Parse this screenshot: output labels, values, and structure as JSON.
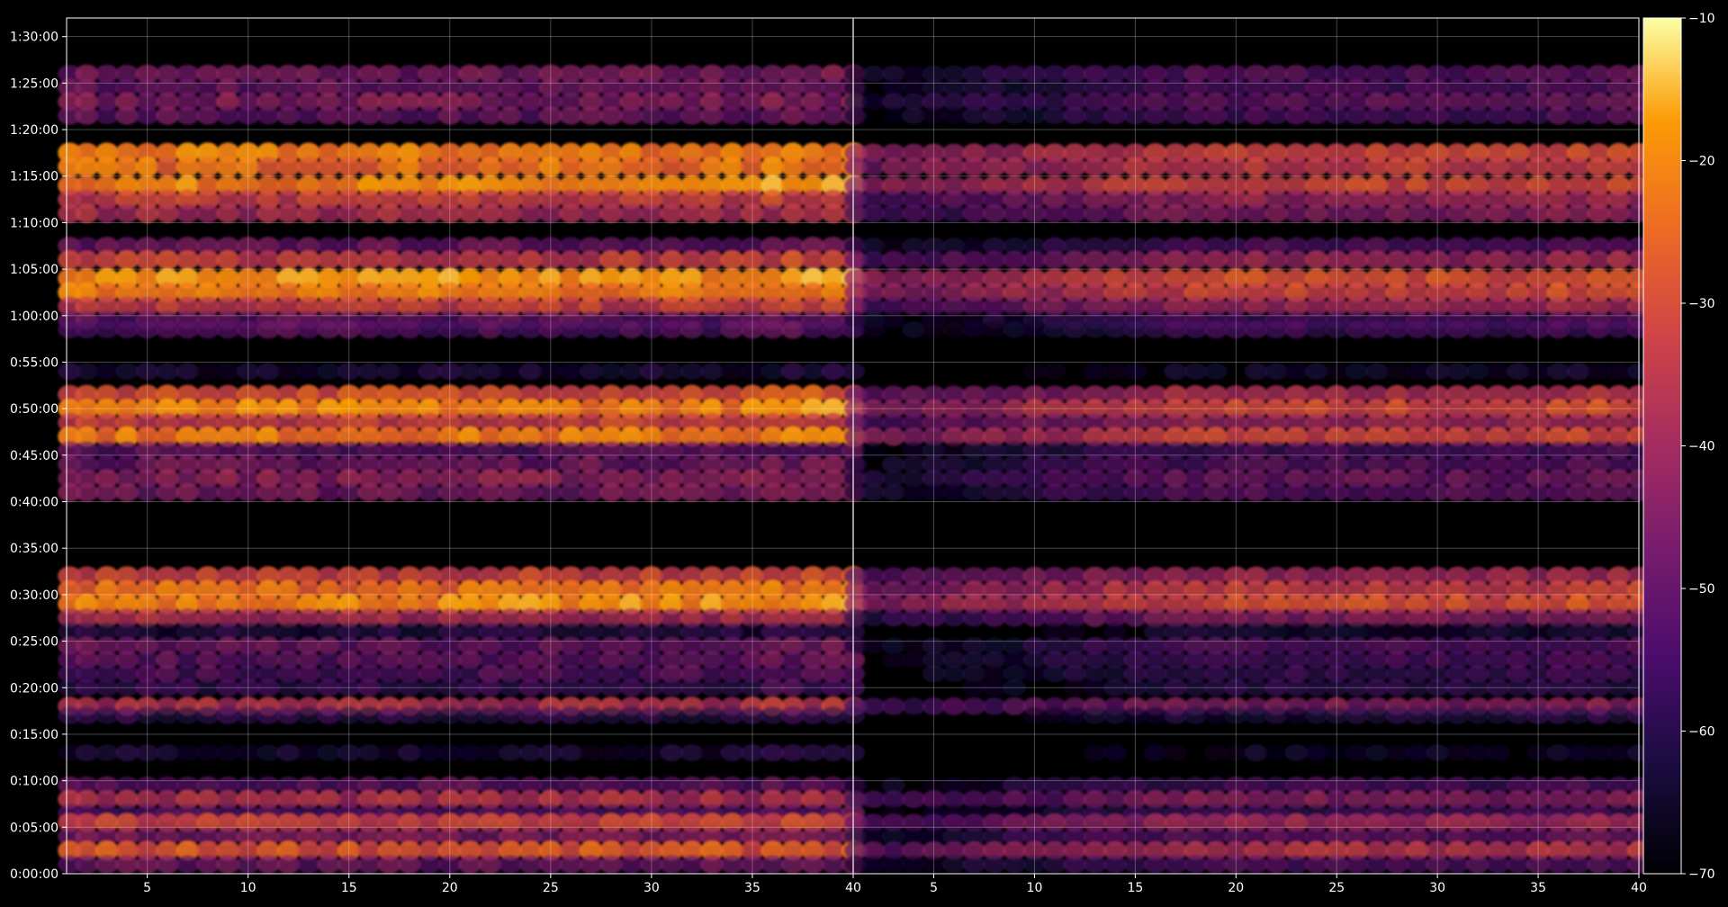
{
  "chart_data": {
    "type": "heatmap",
    "title": "",
    "xlabel": "",
    "ylabel": "",
    "panels": [
      {
        "name": "",
        "x_ticks": [
          5,
          10,
          15,
          20,
          25,
          30,
          35,
          40
        ],
        "xlim": [
          1,
          40
        ],
        "intensity_scale": 1.0
      },
      {
        "name": "",
        "x_ticks": [
          5,
          10,
          15,
          20,
          25,
          30,
          35,
          40
        ],
        "xlim": [
          1,
          40
        ],
        "intensity_scale": 0.8
      }
    ],
    "y_axis": {
      "unit": "time",
      "ylim_seconds": [
        0,
        5520
      ],
      "tick_labels": [
        "0:00:00",
        "0:05:00",
        "0:10:00",
        "0:15:00",
        "0:20:00",
        "0:25:00",
        "0:30:00",
        "0:35:00",
        "0:40:00",
        "0:45:00",
        "0:50:00",
        "0:55:00",
        "1:00:00",
        "1:05:00",
        "1:10:00",
        "1:15:00",
        "1:20:00",
        "1:25:00",
        "1:30:00"
      ]
    },
    "grid": true,
    "colorbar": {
      "colormap": "inferno",
      "range": [
        -70,
        -10
      ],
      "tick_labels": [
        "-10",
        "-20",
        "-30",
        "-40",
        "-50",
        "-60",
        "-70"
      ]
    },
    "rows_seconds_level": [
      [
        "1:26:00",
        -46
      ],
      [
        "1:24:30",
        -48
      ],
      [
        "1:23:00",
        -44
      ],
      [
        "1:21:30",
        -49
      ],
      [
        "1:17:30",
        -22
      ],
      [
        "1:16:00",
        -24
      ],
      [
        "1:14:00",
        -21
      ],
      [
        "1:12:30",
        -33
      ],
      [
        "1:11:00",
        -38
      ],
      [
        "1:07:30",
        -48
      ],
      [
        "1:06:00",
        -33
      ],
      [
        "1:04:00",
        -19
      ],
      [
        "1:02:30",
        -22
      ],
      [
        "1:01:00",
        -33
      ],
      [
        "0:59:30",
        -50
      ],
      [
        "0:58:30",
        -52
      ],
      [
        "0:54:00",
        -62
      ],
      [
        "0:51:30",
        -29
      ],
      [
        "0:50:00",
        -21
      ],
      [
        "0:48:30",
        -32
      ],
      [
        "0:47:00",
        -22
      ],
      [
        "0:45:30",
        -50
      ],
      [
        "0:44:00",
        -47
      ],
      [
        "0:42:30",
        -42
      ],
      [
        "0:41:00",
        -46
      ],
      [
        "0:32:00",
        -32
      ],
      [
        "0:30:30",
        -24
      ],
      [
        "0:29:00",
        -20
      ],
      [
        "0:27:30",
        -38
      ],
      [
        "0:26:00",
        -60
      ],
      [
        "0:24:30",
        -48
      ],
      [
        "0:23:00",
        -50
      ],
      [
        "0:21:30",
        -52
      ],
      [
        "0:20:00",
        -56
      ],
      [
        "0:18:00",
        -37
      ],
      [
        "0:17:00",
        -58
      ],
      [
        "0:13:00",
        -62
      ],
      [
        "0:09:30",
        -50
      ],
      [
        "0:08:00",
        -37
      ],
      [
        "0:06:30",
        -52
      ],
      [
        "0:05:30",
        -32
      ],
      [
        "0:04:00",
        -45
      ],
      [
        "0:02:30",
        -28
      ],
      [
        "0:01:00",
        -48
      ]
    ]
  }
}
